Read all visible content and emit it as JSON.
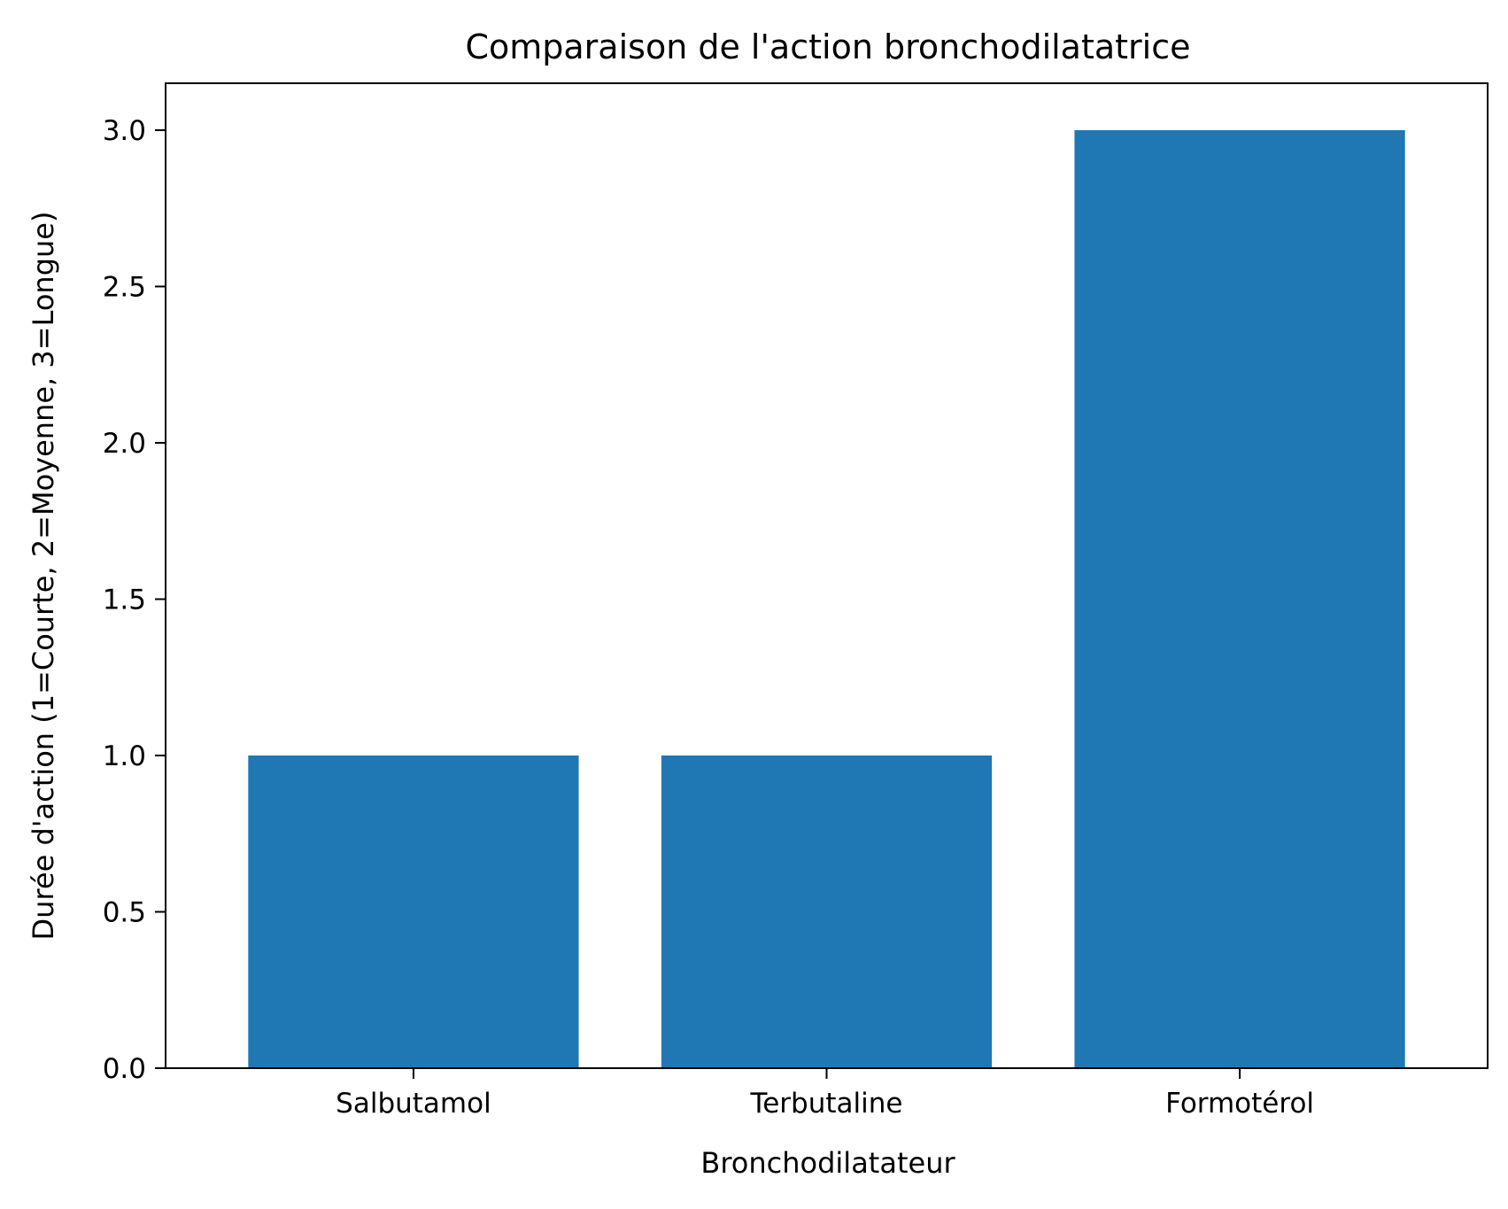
{
  "chart_data": {
    "type": "bar",
    "title": "Comparaison de l'action bronchodilatatrice",
    "xlabel": "Bronchodilatateur",
    "ylabel": "Durée d'action (1=Courte, 2=Moyenne, 3=Longue)",
    "categories": [
      "Salbutamol",
      "Terbutaline",
      "Formotérol"
    ],
    "values": [
      1,
      1,
      3
    ],
    "ylim": [
      0,
      3.15
    ],
    "yticks": [
      0.0,
      0.5,
      1.0,
      1.5,
      2.0,
      2.5,
      3.0
    ],
    "ytick_labels": [
      "0.0",
      "0.5",
      "1.0",
      "1.5",
      "2.0",
      "2.5",
      "3.0"
    ],
    "bar_color": "#1f77b4",
    "grid": false,
    "legend": "none"
  }
}
